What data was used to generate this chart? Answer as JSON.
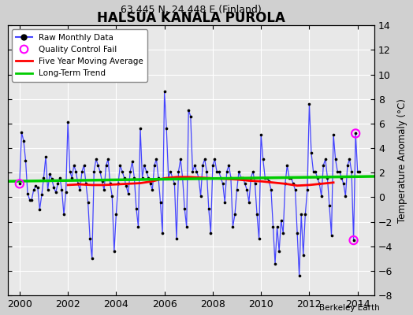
{
  "title": "HALSUA KANALA PUROLA",
  "subtitle": "63.445 N, 24.448 E (Finland)",
  "ylabel": "Temperature Anomaly (°C)",
  "credit": "Berkeley Earth",
  "ylim": [
    -8,
    14
  ],
  "xlim": [
    1999.5,
    2014.7
  ],
  "yticks": [
    -8,
    -6,
    -4,
    -2,
    0,
    2,
    4,
    6,
    8,
    10,
    12,
    14
  ],
  "xticks": [
    2000,
    2002,
    2004,
    2006,
    2008,
    2010,
    2012,
    2014
  ],
  "fig_bg": "#d0d0d0",
  "plot_bg": "#e8e8e8",
  "grid_color": "#ffffff",
  "raw_color": "#4444ff",
  "dot_color": "#000000",
  "ma_color": "#ff0000",
  "trend_color": "#00cc00",
  "qc_color": "#ff00ff",
  "raw_data": [
    [
      2000.0,
      1.1
    ],
    [
      2000.083,
      5.3
    ],
    [
      2000.167,
      4.6
    ],
    [
      2000.25,
      3.0
    ],
    [
      2000.333,
      0.3
    ],
    [
      2000.417,
      -0.2
    ],
    [
      2000.5,
      -0.2
    ],
    [
      2000.583,
      0.6
    ],
    [
      2000.667,
      0.9
    ],
    [
      2000.75,
      0.8
    ],
    [
      2000.833,
      -1.0
    ],
    [
      2000.917,
      0.2
    ],
    [
      2001.0,
      1.6
    ],
    [
      2001.083,
      3.3
    ],
    [
      2001.167,
      0.6
    ],
    [
      2001.25,
      1.9
    ],
    [
      2001.333,
      1.5
    ],
    [
      2001.417,
      0.8
    ],
    [
      2001.5,
      0.4
    ],
    [
      2001.583,
      1.1
    ],
    [
      2001.667,
      1.6
    ],
    [
      2001.75,
      0.6
    ],
    [
      2001.833,
      -1.4
    ],
    [
      2001.917,
      0.4
    ],
    [
      2002.0,
      6.1
    ],
    [
      2002.083,
      2.1
    ],
    [
      2002.167,
      1.6
    ],
    [
      2002.25,
      2.6
    ],
    [
      2002.333,
      2.1
    ],
    [
      2002.417,
      1.1
    ],
    [
      2002.5,
      0.6
    ],
    [
      2002.583,
      2.1
    ],
    [
      2002.667,
      2.6
    ],
    [
      2002.75,
      1.1
    ],
    [
      2002.833,
      -0.4
    ],
    [
      2002.917,
      -3.4
    ],
    [
      2003.0,
      -5.0
    ],
    [
      2003.083,
      2.1
    ],
    [
      2003.167,
      3.1
    ],
    [
      2003.25,
      2.6
    ],
    [
      2003.333,
      2.1
    ],
    [
      2003.417,
      1.3
    ],
    [
      2003.5,
      0.6
    ],
    [
      2003.583,
      2.6
    ],
    [
      2003.667,
      3.1
    ],
    [
      2003.75,
      1.1
    ],
    [
      2003.833,
      0.1
    ],
    [
      2003.917,
      -4.4
    ],
    [
      2004.0,
      -1.4
    ],
    [
      2004.083,
      1.1
    ],
    [
      2004.167,
      2.6
    ],
    [
      2004.25,
      2.1
    ],
    [
      2004.333,
      1.6
    ],
    [
      2004.417,
      0.9
    ],
    [
      2004.5,
      0.3
    ],
    [
      2004.583,
      2.1
    ],
    [
      2004.667,
      2.9
    ],
    [
      2004.75,
      1.6
    ],
    [
      2004.833,
      -0.9
    ],
    [
      2004.917,
      -2.4
    ],
    [
      2005.0,
      5.6
    ],
    [
      2005.083,
      1.6
    ],
    [
      2005.167,
      2.6
    ],
    [
      2005.25,
      2.1
    ],
    [
      2005.333,
      1.6
    ],
    [
      2005.417,
      1.1
    ],
    [
      2005.5,
      0.6
    ],
    [
      2005.583,
      2.6
    ],
    [
      2005.667,
      3.1
    ],
    [
      2005.75,
      1.6
    ],
    [
      2005.833,
      -0.4
    ],
    [
      2005.917,
      -2.9
    ],
    [
      2006.0,
      8.6
    ],
    [
      2006.083,
      5.6
    ],
    [
      2006.167,
      1.6
    ],
    [
      2006.25,
      2.1
    ],
    [
      2006.333,
      1.6
    ],
    [
      2006.417,
      1.1
    ],
    [
      2006.5,
      -3.4
    ],
    [
      2006.583,
      2.1
    ],
    [
      2006.667,
      3.1
    ],
    [
      2006.75,
      1.6
    ],
    [
      2006.833,
      -0.9
    ],
    [
      2006.917,
      -2.4
    ],
    [
      2007.0,
      7.1
    ],
    [
      2007.083,
      6.6
    ],
    [
      2007.167,
      2.1
    ],
    [
      2007.25,
      2.6
    ],
    [
      2007.333,
      2.1
    ],
    [
      2007.417,
      1.6
    ],
    [
      2007.5,
      0.1
    ],
    [
      2007.583,
      2.6
    ],
    [
      2007.667,
      3.1
    ],
    [
      2007.75,
      2.1
    ],
    [
      2007.833,
      -0.9
    ],
    [
      2007.917,
      -2.9
    ],
    [
      2008.0,
      2.6
    ],
    [
      2008.083,
      3.1
    ],
    [
      2008.167,
      2.1
    ],
    [
      2008.25,
      2.1
    ],
    [
      2008.333,
      1.6
    ],
    [
      2008.417,
      1.1
    ],
    [
      2008.5,
      -0.4
    ],
    [
      2008.583,
      2.1
    ],
    [
      2008.667,
      2.6
    ],
    [
      2008.75,
      1.6
    ],
    [
      2008.833,
      -2.4
    ],
    [
      2008.917,
      -1.4
    ],
    [
      2009.0,
      0.6
    ],
    [
      2009.083,
      2.1
    ],
    [
      2009.167,
      1.6
    ],
    [
      2009.25,
      1.6
    ],
    [
      2009.333,
      1.1
    ],
    [
      2009.417,
      0.6
    ],
    [
      2009.5,
      -0.4
    ],
    [
      2009.583,
      1.6
    ],
    [
      2009.667,
      2.1
    ],
    [
      2009.75,
      1.1
    ],
    [
      2009.833,
      -1.4
    ],
    [
      2009.917,
      -3.4
    ],
    [
      2010.0,
      5.1
    ],
    [
      2010.083,
      3.1
    ],
    [
      2010.167,
      1.6
    ],
    [
      2010.25,
      1.6
    ],
    [
      2010.333,
      1.3
    ],
    [
      2010.417,
      0.6
    ],
    [
      2010.5,
      -2.4
    ],
    [
      2010.583,
      -5.4
    ],
    [
      2010.667,
      -2.4
    ],
    [
      2010.75,
      -4.4
    ],
    [
      2010.833,
      -1.9
    ],
    [
      2010.917,
      -2.9
    ],
    [
      2011.0,
      1.1
    ],
    [
      2011.083,
      2.6
    ],
    [
      2011.167,
      1.6
    ],
    [
      2011.25,
      1.6
    ],
    [
      2011.333,
      1.1
    ],
    [
      2011.417,
      0.6
    ],
    [
      2011.5,
      -2.9
    ],
    [
      2011.583,
      -6.4
    ],
    [
      2011.667,
      -1.4
    ],
    [
      2011.75,
      -4.7
    ],
    [
      2011.833,
      -1.4
    ],
    [
      2011.917,
      0.6
    ],
    [
      2012.0,
      7.6
    ],
    [
      2012.083,
      3.6
    ],
    [
      2012.167,
      2.1
    ],
    [
      2012.25,
      2.1
    ],
    [
      2012.333,
      1.6
    ],
    [
      2012.417,
      1.1
    ],
    [
      2012.5,
      0.1
    ],
    [
      2012.583,
      2.6
    ],
    [
      2012.667,
      3.1
    ],
    [
      2012.75,
      1.6
    ],
    [
      2012.833,
      -0.7
    ],
    [
      2012.917,
      -3.1
    ],
    [
      2013.0,
      5.1
    ],
    [
      2013.083,
      3.1
    ],
    [
      2013.167,
      2.1
    ],
    [
      2013.25,
      2.1
    ],
    [
      2013.333,
      1.6
    ],
    [
      2013.417,
      1.1
    ],
    [
      2013.5,
      0.1
    ],
    [
      2013.583,
      2.6
    ],
    [
      2013.667,
      3.1
    ],
    [
      2013.75,
      2.1
    ],
    [
      2013.833,
      -3.5
    ],
    [
      2013.917,
      5.2
    ],
    [
      2014.0,
      2.1
    ],
    [
      2014.083,
      2.1
    ]
  ],
  "qc_fail_points": [
    [
      2000.0,
      1.1
    ],
    [
      2013.917,
      5.2
    ],
    [
      2013.833,
      -3.5
    ]
  ],
  "moving_avg": [
    [
      2002.0,
      1.0
    ],
    [
      2002.5,
      1.05
    ],
    [
      2003.0,
      1.0
    ],
    [
      2003.5,
      1.0
    ],
    [
      2004.0,
      1.05
    ],
    [
      2004.5,
      1.1
    ],
    [
      2005.0,
      1.15
    ],
    [
      2005.5,
      1.3
    ],
    [
      2006.0,
      1.55
    ],
    [
      2006.5,
      1.65
    ],
    [
      2007.0,
      1.65
    ],
    [
      2007.5,
      1.6
    ],
    [
      2008.0,
      1.55
    ],
    [
      2008.5,
      1.5
    ],
    [
      2009.0,
      1.45
    ],
    [
      2009.5,
      1.35
    ],
    [
      2010.0,
      1.3
    ],
    [
      2010.5,
      1.2
    ],
    [
      2011.0,
      1.1
    ],
    [
      2011.5,
      0.95
    ],
    [
      2012.0,
      1.0
    ],
    [
      2012.5,
      1.1
    ],
    [
      2013.0,
      1.2
    ]
  ],
  "trend_x": [
    1999.5,
    2014.7
  ],
  "trend_y": [
    1.3,
    1.7
  ]
}
